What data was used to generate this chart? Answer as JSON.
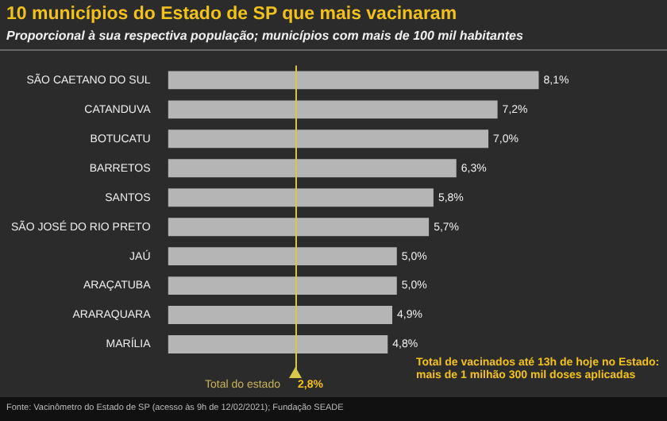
{
  "chart_data": {
    "type": "bar",
    "orientation": "horizontal",
    "title": "10 municípios do Estado de SP que mais vacinaram",
    "subtitle": "Proporcional à sua respectiva população; municípios com mais de 100 mil habitantes",
    "categories": [
      "SÃO CAETANO DO SUL",
      "CATANDUVA",
      "BOTUCATU",
      "BARRETOS",
      "SANTOS",
      "SÃO JOSÉ DO RIO PRETO",
      "JAÚ",
      "ARAÇATUBA",
      "ARARAQUARA",
      "MARÍLIA"
    ],
    "values": [
      8.1,
      7.2,
      7.0,
      6.3,
      5.8,
      5.7,
      5.0,
      5.0,
      4.9,
      4.8
    ],
    "value_labels": [
      "8,1%",
      "7,2%",
      "7,0%",
      "6,3%",
      "5,8%",
      "5,7%",
      "5,0%",
      "5,0%",
      "4,9%",
      "4,8%"
    ],
    "color": "#b5b5b5",
    "tick_labels": "y",
    "ref_lines": [
      {
        "axis": "x",
        "value": 2.8,
        "label": "Total do estado",
        "color": "#d8c848"
      }
    ],
    "annotations": [
      "Total de vacinados até 13h de hoje no Estado: mais de 1 milhão 300 mil doses aplicadas",
      "Fonte: Vacinômetro do Estado de SP (acesso às 9h de 12/02/2021); Fundação SEADE",
      "2,8%"
    ]
  }
}
